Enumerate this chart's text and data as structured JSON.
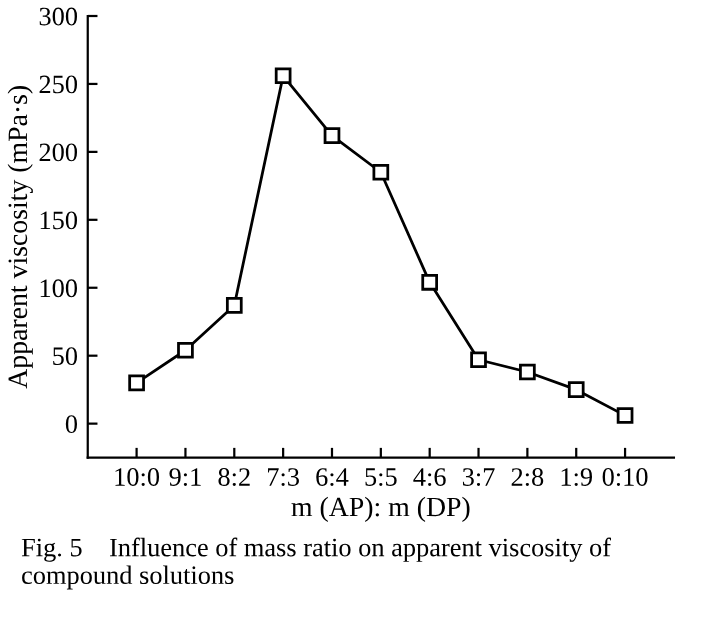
{
  "chart_data": {
    "type": "line",
    "xlabel": "m (AP): m (DP)",
    "ylabel": "Apparent viscosity (mPa·s)",
    "categories": [
      "10:0",
      "9:1",
      "8:2",
      "7:3",
      "6:4",
      "5:5",
      "4:6",
      "3:7",
      "2:8",
      "1:9",
      "0:10"
    ],
    "series": [
      {
        "color": "#000000",
        "values": [
          30,
          54,
          87,
          256,
          212,
          185,
          104,
          47,
          38,
          25,
          6
        ]
      }
    ],
    "ylim": [
      -25,
      300
    ],
    "yticks": [
      0,
      50,
      100,
      150,
      200,
      250,
      300
    ],
    "marker": "square",
    "line_style": "solid",
    "grid": false,
    "legend": false,
    "annotations": [
      "Fig. 5    Influence of mass ratio on apparent viscosity of compound solutions"
    ]
  }
}
